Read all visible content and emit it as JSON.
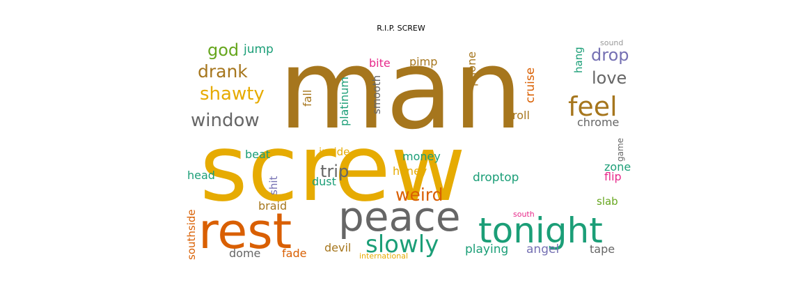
{
  "chart_data": {
    "type": "wordcloud",
    "title": "R.I.P. SCREW",
    "words": [
      {
        "text": "man",
        "color": "#a6761d"
      },
      {
        "text": "screw",
        "color": "#e6ab02"
      },
      {
        "text": "rest",
        "color": "#d95f02"
      },
      {
        "text": "peace",
        "color": "#666666"
      },
      {
        "text": "tonight",
        "color": "#1b9e77"
      },
      {
        "text": "feel",
        "color": "#a6761d"
      },
      {
        "text": "slowly",
        "color": "#1b9e77"
      },
      {
        "text": "shawty",
        "color": "#e6ab02"
      },
      {
        "text": "window",
        "color": "#666666"
      },
      {
        "text": "drank",
        "color": "#a6761d"
      },
      {
        "text": "god",
        "color": "#66a61e"
      },
      {
        "text": "drop",
        "color": "#7570b3"
      },
      {
        "text": "love",
        "color": "#666666"
      },
      {
        "text": "trip",
        "color": "#666666"
      },
      {
        "text": "weird",
        "color": "#d95f02"
      },
      {
        "text": "jump",
        "color": "#1b9e77"
      },
      {
        "text": "bite",
        "color": "#e7298a"
      },
      {
        "text": "pimp",
        "color": "#a6761d"
      },
      {
        "text": "platinum",
        "color": "#1b9e77"
      },
      {
        "text": "fall",
        "color": "#a6761d"
      },
      {
        "text": "smooth",
        "color": "#666666"
      },
      {
        "text": "phone",
        "color": "#a6761d"
      },
      {
        "text": "cruise",
        "color": "#d95f02"
      },
      {
        "text": "hang",
        "color": "#1b9e77"
      },
      {
        "text": "sound",
        "color": "#999999"
      },
      {
        "text": "roll",
        "color": "#a6761d"
      },
      {
        "text": "chrome",
        "color": "#666666"
      },
      {
        "text": "game",
        "color": "#666666"
      },
      {
        "text": "zone",
        "color": "#1b9e77"
      },
      {
        "text": "flip",
        "color": "#e7298a"
      },
      {
        "text": "slab",
        "color": "#66a61e"
      },
      {
        "text": "south",
        "color": "#e7298a"
      },
      {
        "text": "tape",
        "color": "#666666"
      },
      {
        "text": "angel",
        "color": "#7570b3"
      },
      {
        "text": "playing",
        "color": "#1b9e77"
      },
      {
        "text": "droptop",
        "color": "#1b9e77"
      },
      {
        "text": "money",
        "color": "#1b9e77"
      },
      {
        "text": "honey",
        "color": "#e6ab02"
      },
      {
        "text": "inside",
        "color": "#e6ab02"
      },
      {
        "text": "dust",
        "color": "#1b9e77"
      },
      {
        "text": "beat",
        "color": "#1b9e77"
      },
      {
        "text": "shit",
        "color": "#7570b3"
      },
      {
        "text": "head",
        "color": "#1b9e77"
      },
      {
        "text": "braid",
        "color": "#a6761d"
      },
      {
        "text": "southside",
        "color": "#d95f02"
      },
      {
        "text": "dome",
        "color": "#666666"
      },
      {
        "text": "fade",
        "color": "#d95f02"
      },
      {
        "text": "devil",
        "color": "#a6761d"
      },
      {
        "text": "international",
        "color": "#e6ab02"
      }
    ]
  }
}
